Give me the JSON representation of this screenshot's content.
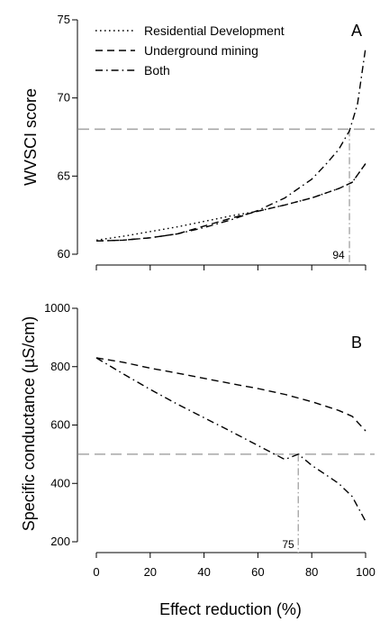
{
  "chart_data": [
    {
      "type": "line",
      "panel_label": "A",
      "ylabel": "WVSCI score",
      "ylim": [
        60,
        75
      ],
      "yticks": [
        60,
        65,
        70,
        75
      ],
      "xlim": [
        0,
        100
      ],
      "xticks": [
        0,
        20,
        40,
        60,
        80,
        100
      ],
      "grid": false,
      "legend_position": "top-left",
      "series": [
        {
          "name": "Residential Development",
          "style": "dotted",
          "x": [
            0,
            10,
            20,
            30,
            40,
            50,
            60,
            70,
            80,
            90,
            95,
            100
          ],
          "y": [
            60.9,
            61.15,
            61.45,
            61.75,
            62.1,
            62.45,
            62.75,
            63.15,
            63.6,
            64.2,
            64.6,
            65.8
          ]
        },
        {
          "name": "Underground mining",
          "style": "dashed",
          "x": [
            0,
            10,
            20,
            30,
            40,
            50,
            60,
            70,
            80,
            90,
            95,
            100
          ],
          "y": [
            60.85,
            60.9,
            61.05,
            61.3,
            61.8,
            62.3,
            62.75,
            63.15,
            63.6,
            64.2,
            64.6,
            65.8
          ]
        },
        {
          "name": "Both",
          "style": "dashdot",
          "x": [
            0,
            10,
            20,
            30,
            40,
            50,
            60,
            70,
            80,
            85,
            90,
            94,
            97,
            100
          ],
          "y": [
            60.85,
            60.9,
            61.05,
            61.3,
            61.7,
            62.2,
            62.8,
            63.6,
            64.8,
            65.7,
            66.7,
            67.9,
            69.6,
            73.2
          ]
        }
      ],
      "reference_line_y": 68,
      "reference_line_x": 94,
      "annotation": "94"
    },
    {
      "type": "line",
      "panel_label": "B",
      "ylabel": "Specific conductance (µS/cm)",
      "xlabel": "Effect reduction (%)",
      "ylim": [
        200,
        1000
      ],
      "yticks": [
        200,
        400,
        600,
        800,
        1000
      ],
      "xlim": [
        0,
        100
      ],
      "xticks": [
        0,
        20,
        40,
        60,
        80,
        100
      ],
      "xtick_labels": [
        "0",
        "20",
        "40",
        "60",
        "80",
        "100"
      ],
      "grid": false,
      "series": [
        {
          "style": "dashed",
          "x": [
            0,
            10,
            20,
            30,
            40,
            50,
            60,
            70,
            80,
            90,
            95,
            100
          ],
          "y": [
            830,
            815,
            795,
            778,
            760,
            742,
            725,
            705,
            680,
            650,
            630,
            580
          ]
        },
        {
          "style": "dashdot",
          "x": [
            0,
            10,
            20,
            30,
            40,
            50,
            60,
            70,
            75,
            80,
            90,
            95,
            100
          ],
          "y": [
            830,
            775,
            722,
            672,
            625,
            578,
            530,
            482,
            500,
            462,
            400,
            355,
            270
          ]
        }
      ],
      "reference_line_y": 500,
      "reference_line_x": 75,
      "annotation": "75"
    }
  ],
  "ylabel_mu": "µ"
}
